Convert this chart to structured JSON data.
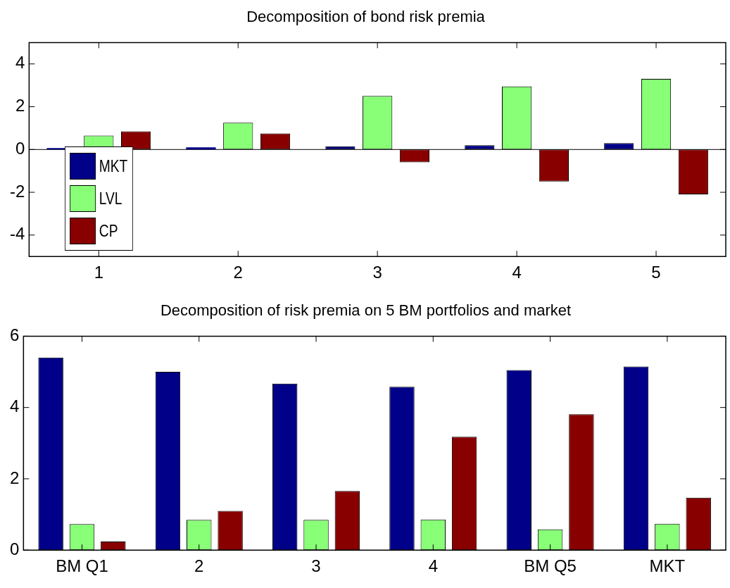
{
  "chart_data": [
    {
      "type": "bar",
      "title": "Decomposition of bond risk premia",
      "categories": [
        "1",
        "2",
        "3",
        "4",
        "5"
      ],
      "series": [
        {
          "name": "MKT",
          "color": "#000088",
          "values": [
            0.07,
            0.1,
            0.15,
            0.2,
            0.3
          ]
        },
        {
          "name": "LVL",
          "color": "#88ff77",
          "values": [
            0.65,
            1.25,
            2.5,
            2.95,
            3.3
          ]
        },
        {
          "name": "CP",
          "color": "#880000",
          "values": [
            0.85,
            0.75,
            -0.6,
            -1.5,
            -2.1
          ]
        }
      ],
      "ylim": [
        -5,
        5
      ],
      "yticks": [
        -4,
        -2,
        0,
        2,
        4
      ],
      "grid": false,
      "legend": "bottom left",
      "ref_lines": [
        {
          "axis": "y",
          "value": 0,
          "color": "#000000"
        }
      ]
    },
    {
      "type": "bar",
      "title": "Decomposition of risk premia on 5 BM portfolios and market",
      "categories": [
        "BM Q1",
        "2",
        "3",
        "4",
        "BM Q5",
        "MKT"
      ],
      "series": [
        {
          "color": "#000088",
          "values": [
            5.4,
            5.0,
            4.67,
            4.58,
            5.05,
            5.15
          ]
        },
        {
          "color": "#88ff77",
          "values": [
            0.73,
            0.85,
            0.85,
            0.86,
            0.58,
            0.74
          ]
        },
        {
          "color": "#880000",
          "values": [
            0.24,
            1.1,
            1.66,
            3.18,
            3.81,
            1.47
          ]
        }
      ],
      "ylim": [
        0,
        6
      ],
      "yticks": [
        0,
        2,
        4,
        6
      ],
      "grid": false
    }
  ]
}
